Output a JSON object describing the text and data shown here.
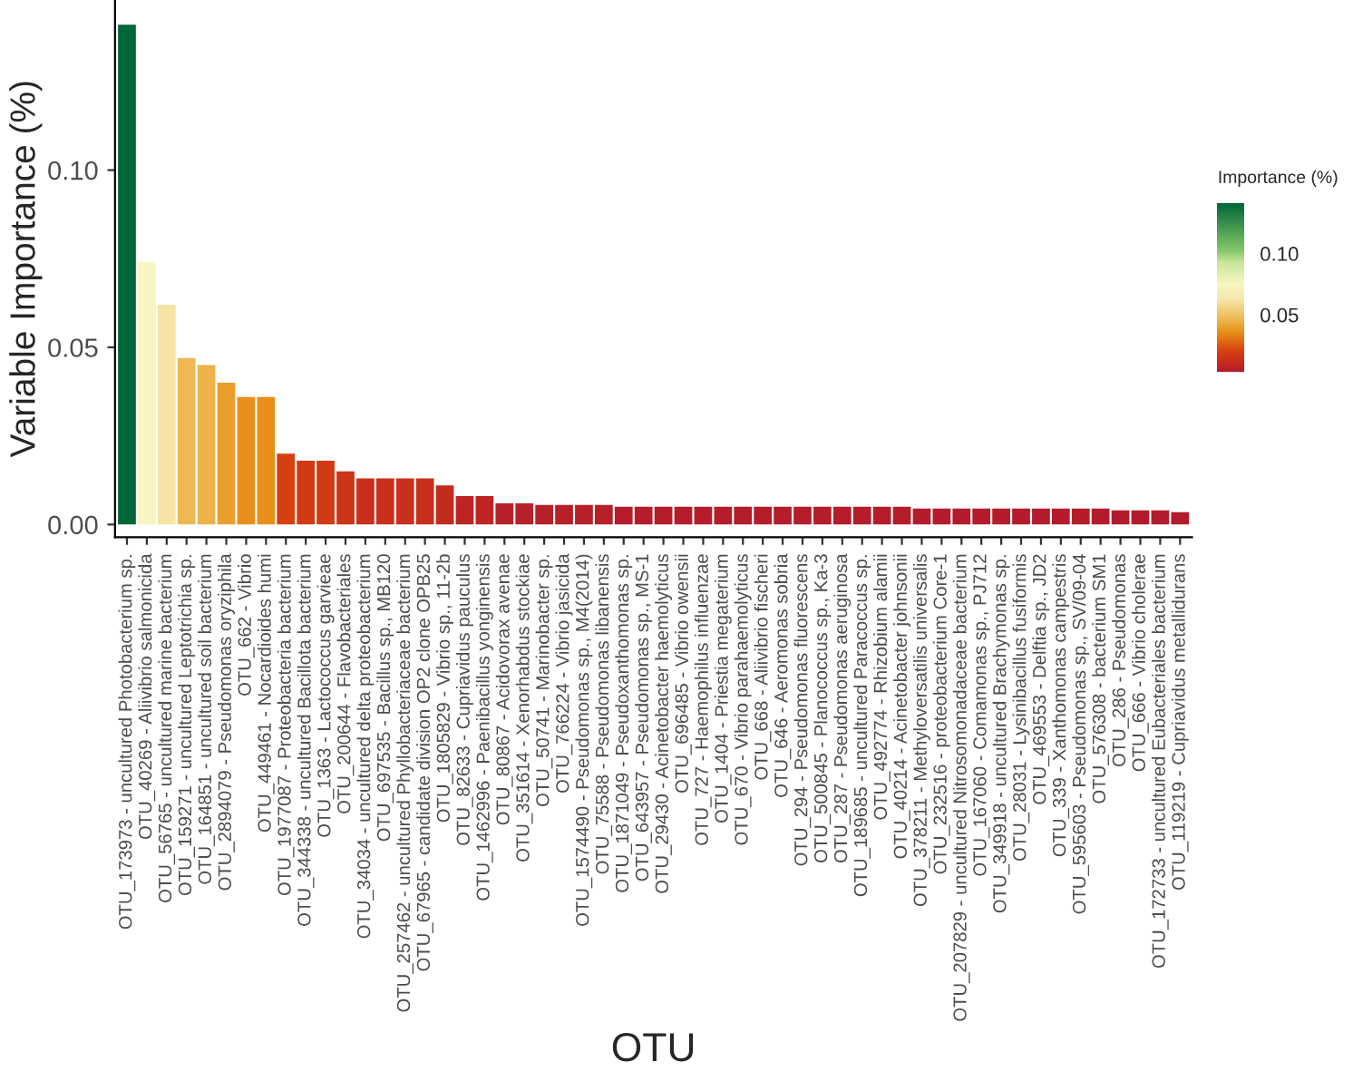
{
  "chart_data": {
    "type": "bar",
    "xlabel": "OTU",
    "ylabel": "Variable Importance (%)",
    "clabel": "Importance (%)",
    "categories": [
      "OTU_173973 - uncultured Photobacterium sp.",
      "OTU_40269 - Aliivibrio salmonicida",
      "OTU_56765 - uncultured marine bacterium",
      "OTU_159271 - uncultured Leptotrichia sp.",
      "OTU_164851 - uncultured soil bacterium",
      "OTU_2894079 - Pseudomonas oryziphila",
      "OTU_662 - Vibrio",
      "OTU_449461 - Nocardioides humi",
      "OTU_1977087 - Proteobacteria bacterium",
      "OTU_344338 - uncultured Bacillota bacterium",
      "OTU_1363 - Lactococcus garvieae",
      "OTU_200644 - Flavobacteriales",
      "OTU_34034 - uncultured delta proteobacterium",
      "OTU_697535 - Bacillus sp., MB120",
      "OTU_257462 - uncultured Phyllobacteriaceae bacterium",
      "OTU_67965 - candidate division OP2 clone OPB25",
      "OTU_1805829 - Vibrio sp., 11-2b",
      "OTU_82633 - Cupriavidus pauculus",
      "OTU_1462996 - Paenibacillus yonginensis",
      "OTU_80867 - Acidovorax avenae",
      "OTU_351614 - Xenorhabdus stockiae",
      "OTU_50741 - Marinobacter sp.",
      "OTU_766224 - Vibrio jasicida",
      "OTU_1574490 - Pseudomonas sp., M4(2014)",
      "OTU_75588 - Pseudomonas libanensis",
      "OTU_1871049 - Pseudoxanthomonas sp.",
      "OTU_643957 - Pseudomonas sp., MS-1",
      "OTU_29430 - Acinetobacter haemolyticus",
      "OTU_696485 - Vibrio owensii",
      "OTU_727 - Haemophilus influenzae",
      "OTU_1404 - Priestia megaterium",
      "OTU_670 - Vibrio parahaemolyticus",
      "OTU_668 - Aliivibrio fischeri",
      "OTU_646 - Aeromonas sobria",
      "OTU_294 - Pseudomonas fluorescens",
      "OTU_500845 - Planococcus sp., Ka-3",
      "OTU_287 - Pseudomonas aeruginosa",
      "OTU_189685 - uncultured Paracoccus sp.",
      "OTU_492774 - Rhizobium alamii",
      "OTU_40214 - Acinetobacter johnsonii",
      "OTU_378211 - Methyloversatilis universalis",
      "OTU_232516 - proteobacterium Core-1",
      "OTU_207829 - uncultured Nitrosomonadaceae bacterium",
      "OTU_167060 - Comamonas sp., PJ712",
      "OTU_349918 - uncultured Brachymonas sp.",
      "OTU_28031 - Lysinibacillus fusiformis",
      "OTU_469553 - Delftia sp., JD2",
      "OTU_339 - Xanthomonas campestris",
      "OTU_595603 - Pseudomonas sp., SV/09-04",
      "OTU_576308 - bacterium SM1",
      "OTU_286 - Pseudomonas",
      "OTU_666 - Vibrio cholerae",
      "OTU_172733 - uncultured Eubacteriales bacterium",
      "OTU_119219 - Cupriavidus metallidurans"
    ],
    "values": [
      0.141,
      0.074,
      0.062,
      0.047,
      0.045,
      0.04,
      0.036,
      0.036,
      0.02,
      0.018,
      0.018,
      0.015,
      0.013,
      0.013,
      0.013,
      0.013,
      0.011,
      0.008,
      0.008,
      0.006,
      0.006,
      0.0055,
      0.0055,
      0.0055,
      0.0055,
      0.005,
      0.005,
      0.005,
      0.005,
      0.005,
      0.005,
      0.005,
      0.005,
      0.005,
      0.005,
      0.005,
      0.005,
      0.005,
      0.005,
      0.005,
      0.0045,
      0.0045,
      0.0045,
      0.0045,
      0.0045,
      0.0045,
      0.0045,
      0.0045,
      0.0045,
      0.0045,
      0.004,
      0.004,
      0.004,
      0.0035
    ],
    "ylim": [
      -0.0036,
      0.148
    ],
    "yticks": [
      {
        "value": 0,
        "label": "0.00"
      },
      {
        "value": 0.05,
        "label": "0.05"
      },
      {
        "value": 0.1,
        "label": "0.10"
      }
    ],
    "clim": [
      0.0035,
      0.141
    ],
    "cticks": [
      {
        "value": 0.05,
        "label": "0.05"
      },
      {
        "value": 0.1,
        "label": "0.10"
      }
    ],
    "grid": false
  }
}
